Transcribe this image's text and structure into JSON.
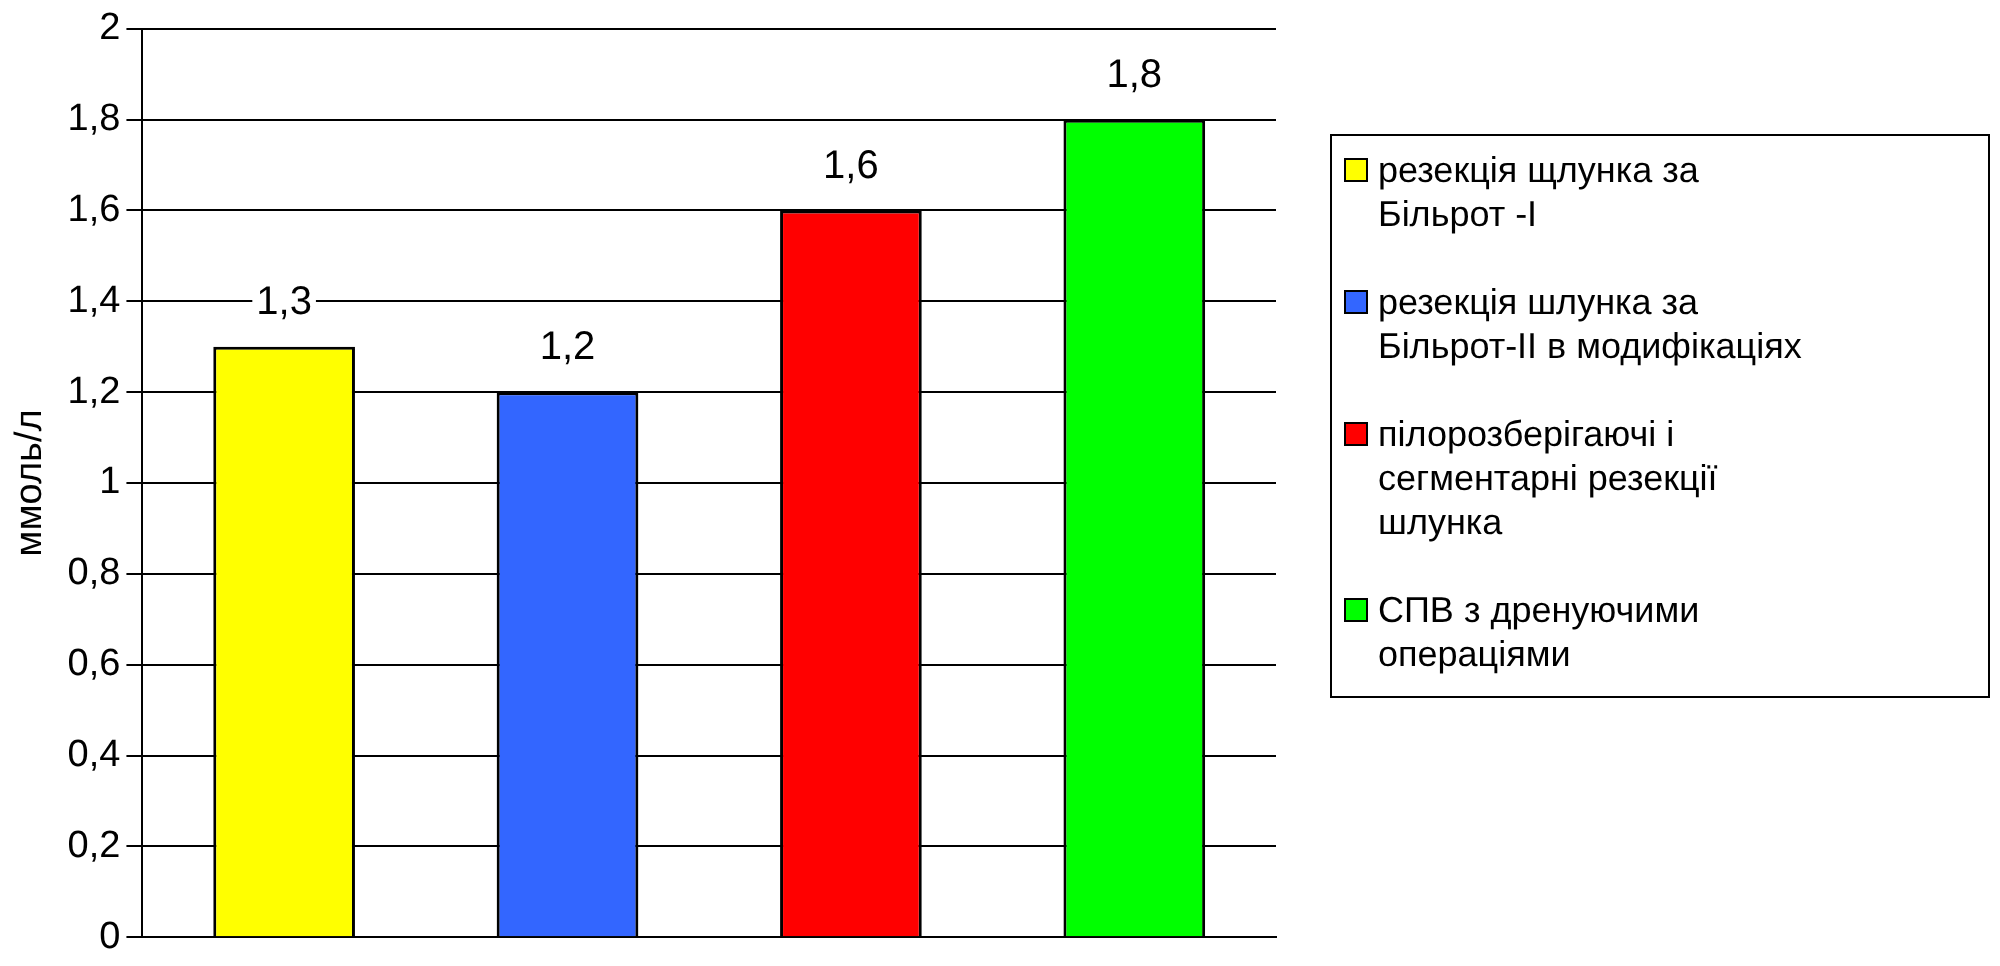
{
  "chart_data": {
    "type": "bar",
    "ylabel": "ммоль/л",
    "categories": [
      null,
      null,
      null,
      null
    ],
    "series": [
      {
        "name": "резекція щлунка за Більрот -І",
        "color": "#ffff00",
        "values": [
          1.3,
          null,
          null,
          null
        ],
        "value_labels": [
          "1,3",
          null,
          null,
          null
        ]
      },
      {
        "name": "резекція шлунка за Більрот-ІІ в модифікаціях",
        "color": "#3366ff",
        "values": [
          null,
          1.2,
          null,
          null
        ],
        "value_labels": [
          null,
          "1,2",
          null,
          null
        ]
      },
      {
        "name": "пілорозберігаючі і сегментарні резекції шлунка",
        "color": "#ff0000",
        "values": [
          null,
          null,
          1.6,
          null
        ],
        "value_labels": [
          null,
          null,
          "1,6",
          null
        ]
      },
      {
        "name": "СПВ з дренуючими операціями",
        "color": "#00ff00",
        "values": [
          null,
          null,
          null,
          1.8
        ],
        "value_labels": [
          null,
          null,
          null,
          "1,8"
        ]
      }
    ],
    "ylim": [
      0,
      2
    ],
    "yticks": [
      0,
      {
        "value": 0.2,
        "label": "0,2"
      },
      {
        "value": 0.4,
        "label": "0,4"
      },
      {
        "value": 0.6,
        "label": "0,6"
      },
      {
        "value": 0.8,
        "label": "0,8"
      },
      1,
      {
        "value": 1.2,
        "label": "1,2"
      },
      {
        "value": 1.4,
        "label": "1,4"
      },
      {
        "value": 1.6,
        "label": "1,6"
      },
      {
        "value": 1.8,
        "label": "1,8"
      },
      2
    ],
    "grid": "y",
    "legend": "right"
  }
}
